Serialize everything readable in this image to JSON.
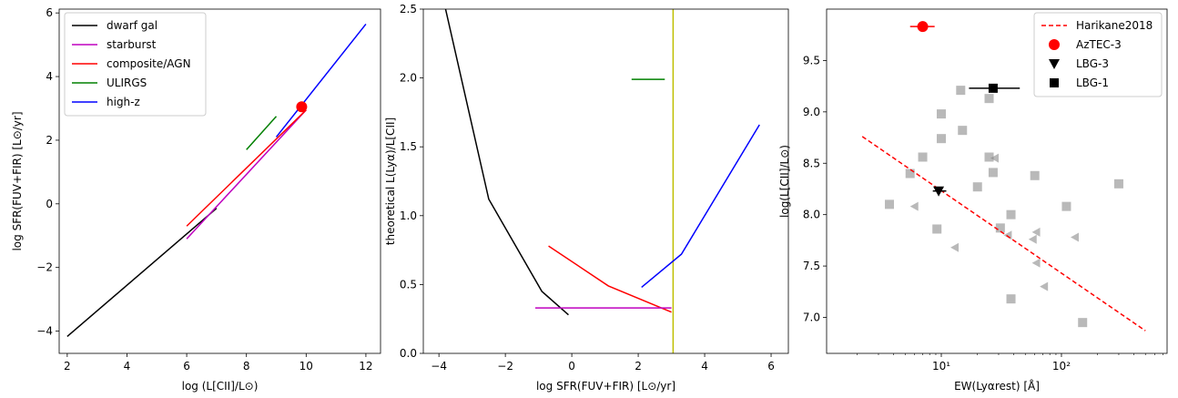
{
  "chart_data": [
    {
      "type": "line",
      "xlabel": "log (L[CII]/L⊙)",
      "ylabel": "log SFR(FUV+FIR) [L⊙/yr]",
      "xlim": [
        1.73,
        12.49
      ],
      "ylim": [
        -4.7,
        6.12
      ],
      "xticks": [
        2,
        4,
        6,
        8,
        10,
        12
      ],
      "yticks": [
        {
          "value": -4,
          "label": "−4"
        },
        {
          "value": -2,
          "label": "−2"
        },
        0,
        2,
        4,
        6
      ],
      "legend": "upper left",
      "series": [
        {
          "name": "dwarf gal",
          "color": "#000000",
          "x": [
            2,
            7
          ],
          "values": [
            -4.17,
            -0.14
          ]
        },
        {
          "name": "starburst",
          "color": "#bf00bf",
          "x": [
            6,
            10
          ],
          "values": [
            -1.1,
            2.95
          ]
        },
        {
          "name": "composite/AGN",
          "color": "#ff0000",
          "x": [
            6,
            10
          ],
          "values": [
            -0.7,
            2.95
          ]
        },
        {
          "name": "ULIRGS",
          "color": "#008000",
          "x": [
            8,
            9
          ],
          "values": [
            1.7,
            2.75
          ]
        },
        {
          "name": "high-z",
          "color": "#0000ff",
          "x": [
            9,
            12
          ],
          "values": [
            2.1,
            5.65
          ]
        },
        {
          "color": "#ff0000",
          "marker": "o",
          "x": [
            9.85
          ],
          "values": [
            3.05
          ]
        }
      ]
    },
    {
      "type": "line",
      "xlabel": "log SFR(FUV+FIR) [L⊙/yr]",
      "ylabel": "theoretical L(Lyα)/L[CII]",
      "xlim": [
        -4.47,
        6.52
      ],
      "ylim": [
        0,
        2.5
      ],
      "xticks": [
        {
          "value": -4,
          "label": "−4"
        },
        {
          "value": -2,
          "label": "−2"
        },
        0,
        2,
        4,
        6
      ],
      "yticks": [
        {
          "value": 0,
          "label": "0.0"
        },
        {
          "value": 0.5,
          "label": "0.5"
        },
        {
          "value": 1,
          "label": "1.0"
        },
        {
          "value": 1.5,
          "label": "1.5"
        },
        {
          "value": 2,
          "label": "2.0"
        },
        {
          "value": 2.5,
          "label": "2.5"
        }
      ],
      "axvline": {
        "x": 3.05,
        "color": "#bfbf00"
      },
      "series": [
        {
          "color": "#000000",
          "x": [
            -3.8,
            -2.5,
            -0.9,
            -0.1
          ],
          "values": [
            2.5,
            1.12,
            0.45,
            0.28
          ]
        },
        {
          "color": "#008000",
          "x": [
            1.8,
            2.8
          ],
          "values": [
            1.99,
            1.99
          ]
        },
        {
          "color": "#ff0000",
          "x": [
            -0.7,
            1.1,
            3.0
          ],
          "values": [
            0.78,
            0.49,
            0.3
          ]
        },
        {
          "color": "#bf00bf",
          "x": [
            -1.1,
            3.0
          ],
          "values": [
            0.33,
            0.33
          ]
        },
        {
          "color": "#0000ff",
          "x": [
            2.1,
            3.3,
            5.65
          ],
          "values": [
            0.48,
            0.72,
            1.66
          ]
        }
      ]
    },
    {
      "type": "scatter",
      "xlabel": "EW(Lyαrest) [Å]",
      "ylabel": "log(L[CII]/L⊙)",
      "xscale": "log",
      "xlim": [
        1.11,
        757
      ],
      "ylim": [
        6.65,
        10.0
      ],
      "xticks": [
        {
          "value": 10,
          "label": "10¹"
        },
        {
          "value": 100,
          "label": "10²"
        }
      ],
      "yticks": [
        {
          "value": 7,
          "label": "7.0"
        },
        7.5,
        {
          "value": 8,
          "label": "8.0"
        },
        8.5,
        {
          "value": 9,
          "label": "9.0"
        },
        9.5
      ],
      "legend": "upper right",
      "series": [
        {
          "color": "#808080",
          "marker": "s",
          "alpha": 0.55,
          "x": [
            14.5,
            10,
            10,
            15,
            25,
            7,
            25,
            27,
            5.5,
            20,
            60,
            3.7,
            9.2,
            31,
            38,
            110,
            300,
            38,
            150
          ],
          "values": [
            9.21,
            8.98,
            8.74,
            8.82,
            9.13,
            8.56,
            8.56,
            8.41,
            8.4,
            8.27,
            8.38,
            8.1,
            7.86,
            7.87,
            8.0,
            8.08,
            8.3,
            7.18,
            6.95
          ]
        },
        {
          "color": "#808080",
          "marker": "<",
          "alpha": 0.55,
          "x": [
            6,
            28,
            13,
            36,
            58,
            62,
            72,
            130,
            62
          ],
          "values": [
            8.08,
            8.55,
            7.68,
            7.8,
            7.76,
            7.53,
            7.3,
            7.78,
            7.83
          ]
        },
        {
          "name": "Harikane2018",
          "color": "#ff0000",
          "style": "dashed",
          "x": [
            2.2,
            500
          ],
          "values": [
            8.76,
            6.87
          ]
        },
        {
          "name": "AzTEC-3",
          "color": "#ff0000",
          "marker": "o",
          "x": [
            7
          ],
          "values": [
            9.83
          ],
          "xerr": [
            [
              1.5,
              1.8
            ]
          ]
        },
        {
          "name": "LBG-3",
          "color": "#000000",
          "marker": "v",
          "x": [
            9.5
          ],
          "values": [
            8.23
          ],
          "xerr": [
            [
              1,
              1.5
            ]
          ]
        },
        {
          "name": "LBG-1",
          "color": "#000000",
          "marker": "s",
          "x": [
            27
          ],
          "values": [
            9.23
          ],
          "xerr": [
            [
              10,
              18
            ]
          ]
        }
      ]
    }
  ]
}
